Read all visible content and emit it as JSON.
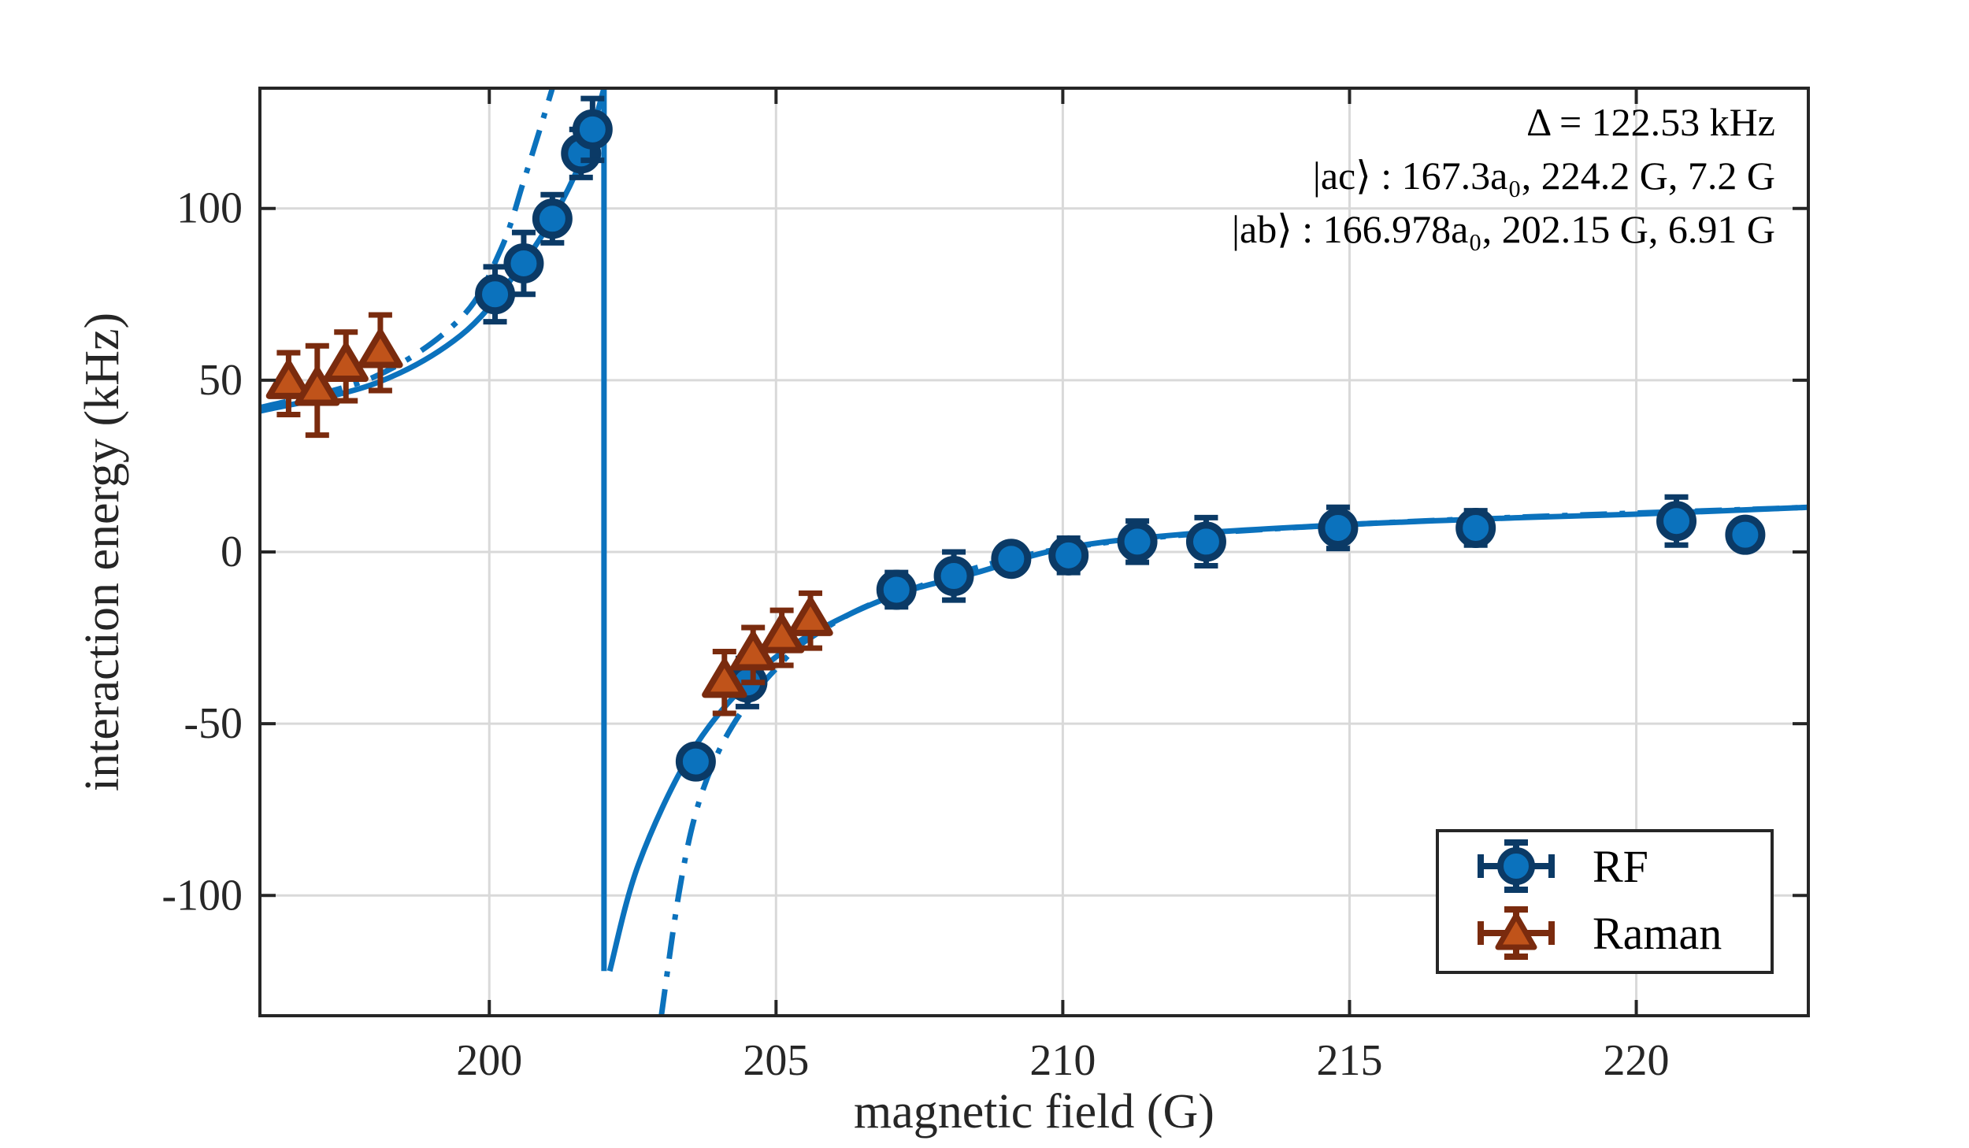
{
  "chart_data": {
    "type": "scatter",
    "title": "",
    "xlabel": "magnetic field (G)",
    "ylabel": "interaction energy (kHz)",
    "xlim": [
      196,
      223
    ],
    "ylim": [
      -135,
      135
    ],
    "xticks": [
      200,
      205,
      210,
      215,
      220
    ],
    "yticks": [
      -100,
      -50,
      0,
      50,
      100
    ],
    "grid": true,
    "legend_position": "bottom-right",
    "annotation_lines": [
      "Δ = 122.53 kHz",
      "|ac⟩ : 167.3a₀, 224.2 G, 7.2 G",
      "|ab⟩ : 166.978a₀, 202.15 G, 6.91 G"
    ],
    "series": [
      {
        "name": "RF",
        "marker": "circle",
        "color": "#0b3a66",
        "x": [
          200.1,
          200.6,
          201.1,
          201.6,
          201.8,
          203.6,
          204.5,
          207.1,
          208.1,
          209.1,
          210.1,
          211.3,
          212.5,
          214.8,
          217.2,
          220.7,
          221.9
        ],
        "y": [
          75,
          84,
          97,
          116,
          123,
          -61,
          -38,
          -11,
          -7,
          -2,
          -1,
          3,
          3,
          7,
          7,
          9,
          5
        ],
        "yerr": [
          8,
          9,
          7,
          7,
          9,
          3,
          7,
          5,
          7,
          3,
          5,
          6,
          7,
          6,
          5,
          7,
          4
        ]
      },
      {
        "name": "Raman",
        "marker": "triangle",
        "color": "#7a2b0e",
        "x": [
          196.5,
          197.0,
          197.5,
          198.1,
          204.1,
          204.6,
          205.1,
          205.6
        ],
        "y": [
          49,
          47,
          54,
          58,
          -38,
          -30,
          -25,
          -20
        ],
        "yerr": [
          9,
          13,
          10,
          11,
          9,
          8,
          8,
          8
        ]
      },
      {
        "name": "",
        "line_style": "solid",
        "color": "#0b72bd",
        "x": [
          196,
          198,
          199.5,
          200.5,
          201.2,
          201.7,
          202.0,
          202.1,
          202.6,
          203.5,
          204.5,
          205.5,
          207,
          208.5,
          210,
          212,
          215,
          218,
          220,
          223
        ],
        "y": [
          41,
          49,
          63,
          82,
          100,
          118,
          135,
          -122,
          -91,
          -59,
          -38,
          -25,
          -13,
          -6,
          1,
          5,
          8,
          10,
          11,
          13
        ]
      },
      {
        "name": "",
        "line_style": "dashdot",
        "color": "#0b72bd",
        "x": [
          196,
          198,
          199.5,
          200.2,
          200.6,
          200.9,
          201.1,
          203.0,
          203.3,
          203.6,
          204.0,
          204.5,
          205.0,
          205.6,
          207,
          210,
          215,
          223
        ],
        "y": [
          42,
          51,
          68,
          88,
          108,
          124,
          135,
          -135,
          -100,
          -76,
          -58,
          -44,
          -34,
          -25,
          -13,
          1,
          8,
          13
        ]
      }
    ]
  }
}
